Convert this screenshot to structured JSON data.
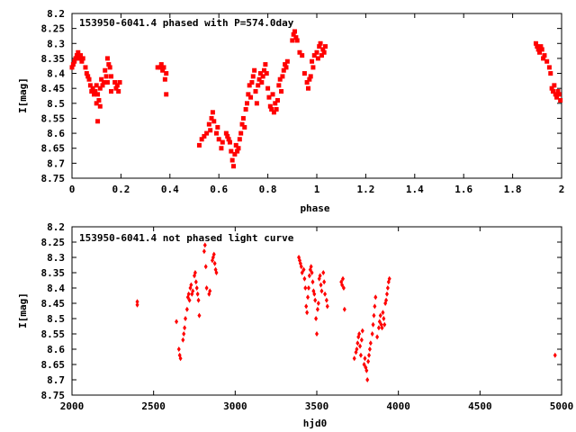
{
  "chart_data": [
    {
      "type": "scatter",
      "title": "153950-6041.4 phased with P=574.0day",
      "xlabel": "phase",
      "ylabel": "I[mag]",
      "xlim": [
        0,
        2
      ],
      "ylim": [
        8.75,
        8.2
      ],
      "y_inverted": true,
      "grid": false,
      "marker_color": "#ff0000",
      "marker": "filled-square",
      "x_ticks": [
        "0",
        "0.2",
        "0.4",
        "0.6",
        "0.8",
        "1",
        "1.2",
        "1.4",
        "1.6",
        "1.8",
        "2"
      ],
      "y_ticks": [
        "8.2",
        "8.25",
        "8.3",
        "8.35",
        "8.4",
        "8.45",
        "8.5",
        "8.55",
        "8.6",
        "8.65",
        "8.7",
        "8.75"
      ],
      "points": [
        [
          0.0,
          8.38
        ],
        [
          0.005,
          8.37
        ],
        [
          0.01,
          8.36
        ],
        [
          0.015,
          8.35
        ],
        [
          0.02,
          8.34
        ],
        [
          0.025,
          8.33
        ],
        [
          0.03,
          8.35
        ],
        [
          0.035,
          8.34
        ],
        [
          0.04,
          8.36
        ],
        [
          0.045,
          8.35
        ],
        [
          0.055,
          8.38
        ],
        [
          0.06,
          8.4
        ],
        [
          0.065,
          8.41
        ],
        [
          0.07,
          8.42
        ],
        [
          0.075,
          8.44
        ],
        [
          0.08,
          8.46
        ],
        [
          0.085,
          8.45
        ],
        [
          0.09,
          8.47
        ],
        [
          0.095,
          8.46
        ],
        [
          0.1,
          8.44
        ],
        [
          0.1,
          8.5
        ],
        [
          0.105,
          8.47
        ],
        [
          0.105,
          8.56
        ],
        [
          0.11,
          8.49
        ],
        [
          0.115,
          8.51
        ],
        [
          0.115,
          8.45
        ],
        [
          0.12,
          8.42
        ],
        [
          0.125,
          8.44
        ],
        [
          0.13,
          8.43
        ],
        [
          0.135,
          8.39
        ],
        [
          0.14,
          8.41
        ],
        [
          0.145,
          8.35
        ],
        [
          0.145,
          8.43
        ],
        [
          0.15,
          8.37
        ],
        [
          0.155,
          8.38
        ],
        [
          0.16,
          8.41
        ],
        [
          0.16,
          8.46
        ],
        [
          0.175,
          8.43
        ],
        [
          0.18,
          8.45
        ],
        [
          0.185,
          8.44
        ],
        [
          0.19,
          8.46
        ],
        [
          0.195,
          8.43
        ],
        [
          0.35,
          8.38
        ],
        [
          0.36,
          8.38
        ],
        [
          0.365,
          8.37
        ],
        [
          0.37,
          8.39
        ],
        [
          0.375,
          8.38
        ],
        [
          0.38,
          8.42
        ],
        [
          0.385,
          8.47
        ],
        [
          0.385,
          8.4
        ],
        [
          0.52,
          8.64
        ],
        [
          0.53,
          8.62
        ],
        [
          0.54,
          8.61
        ],
        [
          0.55,
          8.6
        ],
        [
          0.56,
          8.57
        ],
        [
          0.565,
          8.59
        ],
        [
          0.57,
          8.55
        ],
        [
          0.575,
          8.53
        ],
        [
          0.58,
          8.56
        ],
        [
          0.59,
          8.6
        ],
        [
          0.595,
          8.58
        ],
        [
          0.6,
          8.62
        ],
        [
          0.61,
          8.65
        ],
        [
          0.615,
          8.63
        ],
        [
          0.63,
          8.6
        ],
        [
          0.635,
          8.61
        ],
        [
          0.64,
          8.62
        ],
        [
          0.645,
          8.63
        ],
        [
          0.65,
          8.66
        ],
        [
          0.655,
          8.69
        ],
        [
          0.66,
          8.71
        ],
        [
          0.665,
          8.67
        ],
        [
          0.67,
          8.64
        ],
        [
          0.675,
          8.66
        ],
        [
          0.68,
          8.65
        ],
        [
          0.685,
          8.62
        ],
        [
          0.69,
          8.6
        ],
        [
          0.695,
          8.57
        ],
        [
          0.7,
          8.55
        ],
        [
          0.705,
          8.58
        ],
        [
          0.71,
          8.52
        ],
        [
          0.715,
          8.5
        ],
        [
          0.72,
          8.47
        ],
        [
          0.725,
          8.44
        ],
        [
          0.73,
          8.48
        ],
        [
          0.735,
          8.43
        ],
        [
          0.74,
          8.41
        ],
        [
          0.745,
          8.39
        ],
        [
          0.75,
          8.46
        ],
        [
          0.755,
          8.5
        ],
        [
          0.76,
          8.44
        ],
        [
          0.765,
          8.42
        ],
        [
          0.77,
          8.4
        ],
        [
          0.775,
          8.43
        ],
        [
          0.78,
          8.41
        ],
        [
          0.785,
          8.39
        ],
        [
          0.79,
          8.37
        ],
        [
          0.795,
          8.4
        ],
        [
          0.8,
          8.45
        ],
        [
          0.805,
          8.48
        ],
        [
          0.81,
          8.51
        ],
        [
          0.815,
          8.52
        ],
        [
          0.82,
          8.47
        ],
        [
          0.825,
          8.53
        ],
        [
          0.83,
          8.5
        ],
        [
          0.835,
          8.52
        ],
        [
          0.84,
          8.49
        ],
        [
          0.845,
          8.44
        ],
        [
          0.85,
          8.42
        ],
        [
          0.855,
          8.46
        ],
        [
          0.86,
          8.41
        ],
        [
          0.865,
          8.39
        ],
        [
          0.87,
          8.37
        ],
        [
          0.875,
          8.38
        ],
        [
          0.88,
          8.36
        ],
        [
          0.9,
          8.29
        ],
        [
          0.905,
          8.27
        ],
        [
          0.91,
          8.26
        ],
        [
          0.915,
          8.28
        ],
        [
          0.92,
          8.29
        ],
        [
          0.93,
          8.33
        ],
        [
          0.94,
          8.34
        ],
        [
          0.95,
          8.4
        ],
        [
          0.96,
          8.43
        ],
        [
          0.965,
          8.45
        ],
        [
          0.97,
          8.42
        ],
        [
          0.975,
          8.41
        ],
        [
          0.98,
          8.36
        ],
        [
          0.985,
          8.38
        ],
        [
          0.99,
          8.34
        ],
        [
          1.0,
          8.33
        ],
        [
          1.005,
          8.35
        ],
        [
          1.01,
          8.31
        ],
        [
          1.015,
          8.3
        ],
        [
          1.02,
          8.34
        ],
        [
          1.025,
          8.32
        ],
        [
          1.03,
          8.33
        ],
        [
          1.035,
          8.31
        ],
        [
          1.895,
          8.3
        ],
        [
          1.9,
          8.31
        ],
        [
          1.905,
          8.32
        ],
        [
          1.91,
          8.33
        ],
        [
          1.915,
          8.31
        ],
        [
          1.92,
          8.32
        ],
        [
          1.925,
          8.35
        ],
        [
          1.93,
          8.34
        ],
        [
          1.94,
          8.36
        ],
        [
          1.95,
          8.38
        ],
        [
          1.955,
          8.4
        ],
        [
          1.96,
          8.45
        ],
        [
          1.965,
          8.46
        ],
        [
          1.97,
          8.44
        ],
        [
          1.975,
          8.47
        ],
        [
          1.98,
          8.48
        ],
        [
          1.985,
          8.46
        ],
        [
          1.99,
          8.47
        ],
        [
          1.995,
          8.49
        ]
      ]
    },
    {
      "type": "scatter",
      "title": "153950-6041.4 not phased light curve",
      "xlabel": "hjd0",
      "ylabel": "I[mag]",
      "xlim": [
        2000,
        5000
      ],
      "ylim": [
        8.75,
        8.2
      ],
      "y_inverted": true,
      "grid": false,
      "marker_color": "#ff0000",
      "marker": "diamond",
      "x_ticks": [
        "2000",
        "2500",
        "3000",
        "3500",
        "4000",
        "4500",
        "5000"
      ],
      "y_ticks": [
        "8.2",
        "8.25",
        "8.3",
        "8.35",
        "8.4",
        "8.45",
        "8.5",
        "8.55",
        "8.6",
        "8.65",
        "8.7",
        "8.75"
      ],
      "points": [
        [
          2400,
          8.445
        ],
        [
          2400,
          8.455
        ],
        [
          2640,
          8.51
        ],
        [
          2655,
          8.6
        ],
        [
          2660,
          8.62
        ],
        [
          2665,
          8.63
        ],
        [
          2680,
          8.57
        ],
        [
          2685,
          8.55
        ],
        [
          2690,
          8.53
        ],
        [
          2695,
          8.5
        ],
        [
          2705,
          8.47
        ],
        [
          2710,
          8.43
        ],
        [
          2715,
          8.42
        ],
        [
          2720,
          8.44
        ],
        [
          2725,
          8.4
        ],
        [
          2730,
          8.39
        ],
        [
          2735,
          8.42
        ],
        [
          2740,
          8.41
        ],
        [
          2750,
          8.36
        ],
        [
          2755,
          8.35
        ],
        [
          2760,
          8.38
        ],
        [
          2765,
          8.4
        ],
        [
          2770,
          8.42
        ],
        [
          2775,
          8.44
        ],
        [
          2780,
          8.49
        ],
        [
          2810,
          8.28
        ],
        [
          2815,
          8.26
        ],
        [
          2820,
          8.33
        ],
        [
          2825,
          8.4
        ],
        [
          2840,
          8.42
        ],
        [
          2845,
          8.41
        ],
        [
          2860,
          8.31
        ],
        [
          2865,
          8.3
        ],
        [
          2870,
          8.29
        ],
        [
          2875,
          8.32
        ],
        [
          2880,
          8.34
        ],
        [
          2885,
          8.35
        ],
        [
          3390,
          8.3
        ],
        [
          3395,
          8.31
        ],
        [
          3400,
          8.32
        ],
        [
          3405,
          8.33
        ],
        [
          3410,
          8.35
        ],
        [
          3420,
          8.34
        ],
        [
          3425,
          8.37
        ],
        [
          3430,
          8.4
        ],
        [
          3435,
          8.46
        ],
        [
          3440,
          8.48
        ],
        [
          3445,
          8.43
        ],
        [
          3450,
          8.4
        ],
        [
          3455,
          8.36
        ],
        [
          3460,
          8.34
        ],
        [
          3465,
          8.33
        ],
        [
          3470,
          8.35
        ],
        [
          3475,
          8.38
        ],
        [
          3480,
          8.41
        ],
        [
          3485,
          8.42
        ],
        [
          3490,
          8.44
        ],
        [
          3495,
          8.5
        ],
        [
          3500,
          8.55
        ],
        [
          3505,
          8.47
        ],
        [
          3510,
          8.45
        ],
        [
          3515,
          8.37
        ],
        [
          3520,
          8.36
        ],
        [
          3525,
          8.39
        ],
        [
          3530,
          8.41
        ],
        [
          3540,
          8.35
        ],
        [
          3545,
          8.38
        ],
        [
          3550,
          8.42
        ],
        [
          3560,
          8.44
        ],
        [
          3565,
          8.46
        ],
        [
          3650,
          8.38
        ],
        [
          3655,
          8.39
        ],
        [
          3660,
          8.37
        ],
        [
          3665,
          8.4
        ],
        [
          3670,
          8.47
        ],
        [
          3730,
          8.63
        ],
        [
          3740,
          8.61
        ],
        [
          3745,
          8.6
        ],
        [
          3750,
          8.58
        ],
        [
          3755,
          8.56
        ],
        [
          3760,
          8.55
        ],
        [
          3765,
          8.59
        ],
        [
          3770,
          8.62
        ],
        [
          3775,
          8.57
        ],
        [
          3780,
          8.54
        ],
        [
          3790,
          8.65
        ],
        [
          3795,
          8.63
        ],
        [
          3800,
          8.66
        ],
        [
          3805,
          8.67
        ],
        [
          3810,
          8.7
        ],
        [
          3815,
          8.64
        ],
        [
          3820,
          8.62
        ],
        [
          3825,
          8.6
        ],
        [
          3830,
          8.58
        ],
        [
          3840,
          8.55
        ],
        [
          3845,
          8.52
        ],
        [
          3850,
          8.49
        ],
        [
          3855,
          8.46
        ],
        [
          3860,
          8.43
        ],
        [
          3870,
          8.56
        ],
        [
          3880,
          8.53
        ],
        [
          3885,
          8.51
        ],
        [
          3890,
          8.49
        ],
        [
          3895,
          8.52
        ],
        [
          3900,
          8.53
        ],
        [
          3905,
          8.48
        ],
        [
          3910,
          8.5
        ],
        [
          3915,
          8.52
        ],
        [
          3920,
          8.45
        ],
        [
          3925,
          8.44
        ],
        [
          3930,
          8.42
        ],
        [
          3935,
          8.4
        ],
        [
          3940,
          8.38
        ],
        [
          3945,
          8.37
        ],
        [
          4960,
          8.62
        ]
      ]
    }
  ]
}
